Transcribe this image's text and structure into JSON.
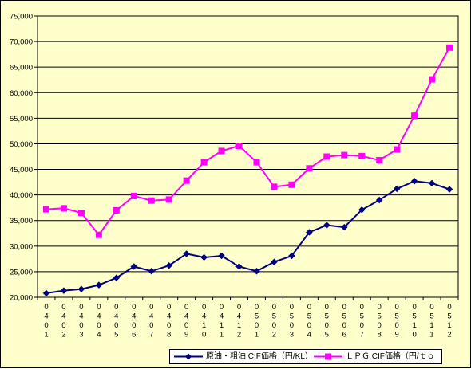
{
  "chart_data": {
    "type": "line",
    "title": "",
    "xlabel": "",
    "ylabel": "",
    "ylim": [
      20000,
      75000
    ],
    "ytick_step": 5000,
    "yticks": [
      "20,000",
      "25,000",
      "30,000",
      "35,000",
      "40,000",
      "45,000",
      "50,000",
      "55,000",
      "60,000",
      "65,000",
      "70,000",
      "75,000"
    ],
    "grid": true,
    "legend_position": "bottom",
    "categories": [
      "0401",
      "0402",
      "0403",
      "0404",
      "0405",
      "0406",
      "0407",
      "0408",
      "0409",
      "0410",
      "0411",
      "0412",
      "0501",
      "0502",
      "0503",
      "0504",
      "0505",
      "0506",
      "0507",
      "0508",
      "0509",
      "0510",
      "0511",
      "0512"
    ],
    "series": [
      {
        "name": "原油・粗油 CIF価格（円/KL）",
        "color": "#000080",
        "marker": "diamond",
        "values": [
          20800,
          21300,
          21600,
          22400,
          23800,
          26000,
          25100,
          26200,
          28500,
          27800,
          28100,
          26000,
          25100,
          26900,
          28100,
          32700,
          34100,
          33700,
          37100,
          39000,
          41200,
          42700,
          42300,
          41100
        ]
      },
      {
        "name": "ＬＰＧ CIF価格（円/ｔｏ",
        "color": "#ff00ff",
        "marker": "square",
        "values": [
          37200,
          37400,
          36500,
          32200,
          37000,
          39800,
          38900,
          39100,
          42800,
          46400,
          48600,
          49600,
          46400,
          41600,
          42000,
          45200,
          47500,
          47800,
          47600,
          46800,
          48900,
          55500,
          62600,
          68800
        ]
      }
    ]
  }
}
